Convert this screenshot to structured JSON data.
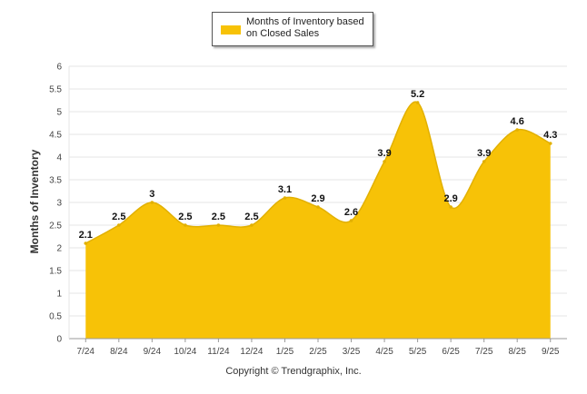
{
  "chart_data": {
    "type": "area",
    "title": "",
    "xlabel": "",
    "ylabel": "Months of Inventory",
    "categories": [
      "7/24",
      "8/24",
      "9/24",
      "10/24",
      "11/24",
      "12/24",
      "1/25",
      "2/25",
      "3/25",
      "4/25",
      "5/25",
      "6/25",
      "7/25",
      "8/25",
      "9/25"
    ],
    "series": [
      {
        "name": "Months of Inventory based on Closed Sales",
        "values": [
          2.1,
          2.5,
          3,
          2.5,
          2.5,
          2.5,
          3.1,
          2.9,
          2.6,
          3.9,
          5.2,
          2.9,
          3.9,
          4.6,
          4.3
        ],
        "labels": [
          "2.1",
          "2.5",
          "3",
          "2.5",
          "2.5",
          "2.5",
          "3.1",
          "2.9",
          "2.6",
          "3.9",
          "5.2",
          "2.9",
          "3.9",
          "4.6",
          "4.3"
        ],
        "color": "#f7c207"
      }
    ],
    "yticks": [
      "0",
      "0.5",
      "1",
      "1.5",
      "2",
      "2.5",
      "3",
      "3.5",
      "4",
      "4.5",
      "5",
      "5.5",
      "6"
    ],
    "ylim": [
      0,
      6
    ],
    "grid": true,
    "legend": {
      "label": "Months of Inventory based on Closed Sales",
      "position": "top-center"
    }
  },
  "footer": {
    "copyright": "Copyright © Trendgraphix, Inc."
  }
}
